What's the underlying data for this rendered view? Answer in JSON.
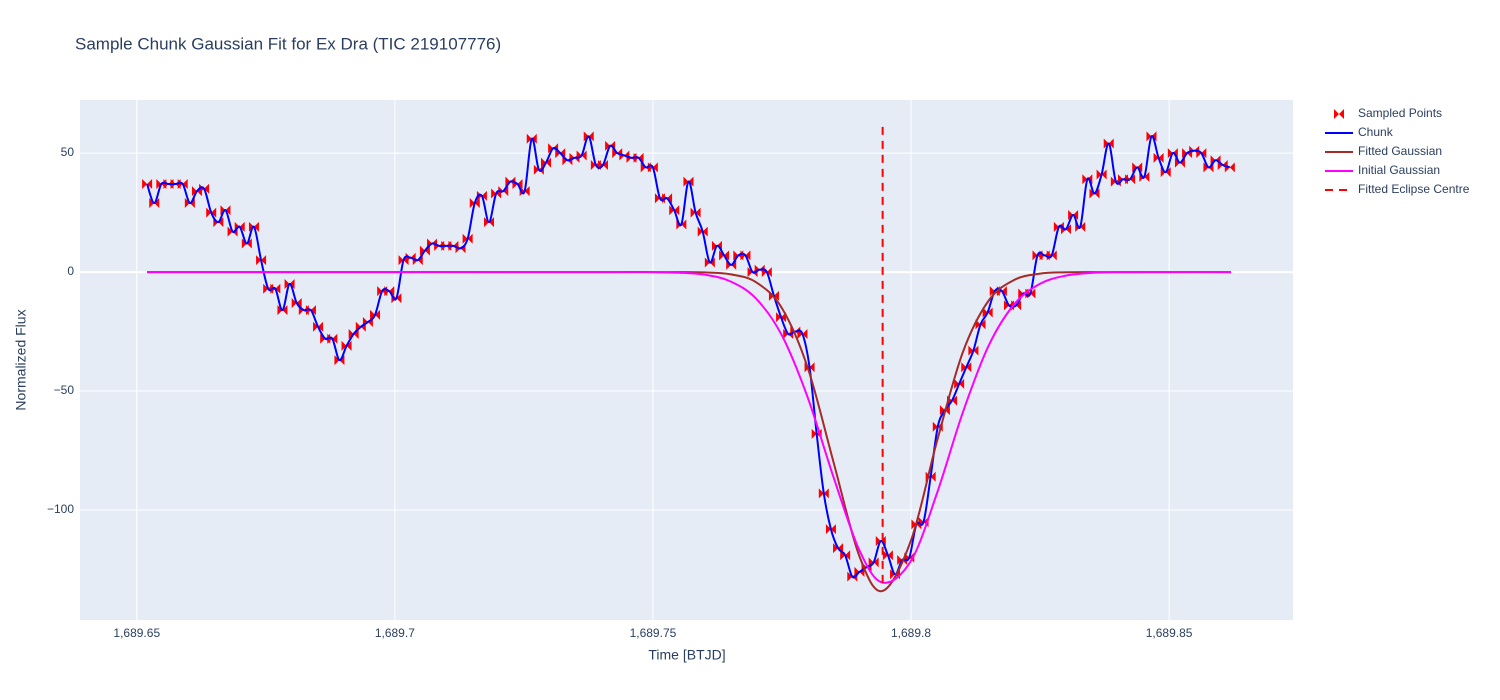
{
  "chart_data": {
    "type": "line",
    "title": "Sample Chunk Gaussian Fit for Ex Dra (TIC 219107776)",
    "x_label": "Time [BTJD]",
    "y_label": "Normalized Flux",
    "xlim": [
      1689.639,
      1689.874
    ],
    "ylim": [
      -146.2,
      72.3
    ],
    "xticks": [
      {
        "value": 1689.65,
        "label": "1,689.65"
      },
      {
        "value": 1689.7,
        "label": "1,689.7"
      },
      {
        "value": 1689.75,
        "label": "1,689.75"
      },
      {
        "value": 1689.8,
        "label": "1,689.8"
      },
      {
        "value": 1689.85,
        "label": "1,689.85"
      }
    ],
    "yticks": [
      50,
      0,
      {
        "value": -50,
        "label": "−50"
      },
      {
        "value": -100,
        "label": "−100"
      }
    ],
    "grid": true,
    "legend": "right",
    "x": [
      1689.652,
      1689.65338,
      1689.65476,
      1689.65614,
      1689.65752,
      1689.6589,
      1689.66028,
      1689.66166,
      1689.66304,
      1689.66442,
      1689.6658,
      1689.66718,
      1689.66856,
      1689.66994,
      1689.67132,
      1689.6727,
      1689.67408,
      1689.67546,
      1689.67684,
      1689.67822,
      1689.6796,
      1689.68098,
      1689.68236,
      1689.68374,
      1689.68512,
      1689.6865,
      1689.68788,
      1689.68926,
      1689.69064,
      1689.69202,
      1689.6934,
      1689.69478,
      1689.69616,
      1689.69754,
      1689.69892,
      1689.7003,
      1689.70168,
      1689.70306,
      1689.70444,
      1689.70582,
      1689.7072,
      1689.70858,
      1689.70996,
      1689.71134,
      1689.71272,
      1689.7141,
      1689.71548,
      1689.71686,
      1689.71824,
      1689.71962,
      1689.721,
      1689.72238,
      1689.72376,
      1689.72514,
      1689.72652,
      1689.7279,
      1689.72928,
      1689.73066,
      1689.73204,
      1689.73342,
      1689.7348,
      1689.73618,
      1689.73756,
      1689.73894,
      1689.74032,
      1689.7417,
      1689.74308,
      1689.74446,
      1689.74584,
      1689.74722,
      1689.7486,
      1689.74998,
      1689.75136,
      1689.75274,
      1689.75412,
      1689.7555,
      1689.75688,
      1689.75826,
      1689.75964,
      1689.76102,
      1689.7624,
      1689.76378,
      1689.76516,
      1689.76654,
      1689.76792,
      1689.7693,
      1689.77068,
      1689.77206,
      1689.77344,
      1689.77482,
      1689.7762,
      1689.77758,
      1689.77896,
      1689.78034,
      1689.78172,
      1689.7831,
      1689.78448,
      1689.78586,
      1689.78724,
      1689.78862,
      1689.79,
      1689.79138,
      1689.79276,
      1689.79414,
      1689.79552,
      1689.7969,
      1689.79828,
      1689.79966,
      1689.80104,
      1689.80242,
      1689.8038,
      1689.80518,
      1689.80656,
      1689.80794,
      1689.80932,
      1689.8107,
      1689.81208,
      1689.81346,
      1689.81484,
      1689.81622,
      1689.8176,
      1689.81898,
      1689.82036,
      1689.82174,
      1689.82312,
      1689.8245,
      1689.82588,
      1689.82726,
      1689.82864,
      1689.83002,
      1689.8314,
      1689.83278,
      1689.83416,
      1689.83554,
      1689.83692,
      1689.8383,
      1689.83968,
      1689.84106,
      1689.84244,
      1689.84382,
      1689.8452,
      1689.84658,
      1689.84796,
      1689.84934,
      1689.85072,
      1689.8521,
      1689.85348,
      1689.85486,
      1689.85624,
      1689.85762,
      1689.859,
      1689.86038,
      1689.86176
    ],
    "series": [
      {
        "name": "Sampled Points",
        "mode": "markers",
        "color": "#ff0000",
        "values": [
          37,
          29,
          37,
          37,
          37,
          37,
          29,
          34,
          35,
          25,
          21,
          26,
          17,
          19,
          12,
          19,
          5,
          -7,
          -7,
          -16,
          -5,
          -13,
          -16,
          -16,
          -23,
          -28,
          -28,
          -37,
          -31,
          -26,
          -23,
          -21,
          -18,
          -8,
          -8,
          -11,
          5,
          6,
          5,
          9,
          12,
          11,
          11,
          11,
          10,
          14,
          29,
          32,
          21,
          33,
          34,
          38,
          37,
          34,
          56,
          43,
          46,
          52,
          50,
          47,
          48,
          49,
          57,
          45,
          45,
          53,
          50,
          49,
          48,
          48,
          44,
          44,
          31,
          31,
          26,
          20,
          38,
          25,
          17,
          4,
          11,
          7,
          3,
          7,
          7,
          0,
          1,
          0,
          -10,
          -19,
          -26,
          -25,
          -26,
          -40,
          -68,
          -93,
          -108,
          -116,
          -119,
          -128,
          -126,
          -124,
          -122,
          -113,
          -119,
          -127,
          -121,
          -120,
          -106,
          -105,
          -86,
          -65,
          -58,
          -54,
          -47,
          -40,
          -33,
          -22,
          -17,
          -8,
          -8,
          -14,
          -14,
          -9,
          -9,
          7,
          7,
          7,
          19,
          18,
          24,
          19,
          39,
          33,
          41,
          54,
          38,
          39,
          39,
          44,
          40,
          57,
          48,
          42,
          50,
          46,
          50,
          51,
          50,
          44,
          47,
          45,
          44
        ]
      },
      {
        "name": "Chunk",
        "mode": "lines",
        "color": "#0000ff",
        "values": [
          37,
          29,
          37,
          37,
          37,
          37,
          29,
          34,
          35,
          25,
          21,
          26,
          17,
          19,
          12,
          19,
          5,
          -7,
          -7,
          -16,
          -5,
          -13,
          -16,
          -16,
          -23,
          -28,
          -28,
          -37,
          -31,
          -26,
          -23,
          -21,
          -18,
          -8,
          -8,
          -11,
          5,
          6,
          5,
          9,
          12,
          11,
          11,
          11,
          10,
          14,
          29,
          32,
          21,
          33,
          34,
          38,
          37,
          34,
          56,
          43,
          46,
          52,
          50,
          47,
          48,
          49,
          57,
          45,
          45,
          53,
          50,
          49,
          48,
          48,
          44,
          44,
          31,
          31,
          26,
          20,
          38,
          25,
          17,
          4,
          11,
          7,
          3,
          7,
          7,
          0,
          1,
          0,
          -10,
          -19,
          -26,
          -25,
          -26,
          -40,
          -68,
          -93,
          -108,
          -116,
          -119,
          -128,
          -126,
          -124,
          -122,
          -113,
          -119,
          -127,
          -121,
          -120,
          -106,
          -105,
          -86,
          -65,
          -58,
          -54,
          -47,
          -40,
          -33,
          -22,
          -17,
          -8,
          -8,
          -14,
          -14,
          -9,
          -9,
          7,
          7,
          7,
          19,
          18,
          24,
          19,
          39,
          33,
          41,
          54,
          38,
          39,
          39,
          44,
          40,
          57,
          48,
          42,
          50,
          46,
          50,
          51,
          50,
          44,
          47,
          45,
          44
        ]
      },
      {
        "name": "Fitted Gaussian",
        "mode": "lines",
        "color": "#a52a2a",
        "x": [
          1689.652,
          1689.7,
          1689.74,
          1689.75,
          1689.755,
          1689.76,
          1689.765,
          1689.77,
          1689.775,
          1689.78,
          1689.785,
          1689.79,
          1689.7945,
          1689.8,
          1689.805,
          1689.81,
          1689.815,
          1689.82,
          1689.825,
          1689.83,
          1689.835,
          1689.84,
          1689.85,
          1689.862
        ],
        "values": [
          0,
          0,
          0,
          0,
          -0.02,
          -0.15,
          -0.92,
          -4.3,
          -15.2,
          -40.3,
          -80,
          -119.4,
          -134,
          -112.7,
          -71.3,
          -33.9,
          -12.1,
          -3.3,
          -0.66,
          -0.1,
          -0.01,
          0,
          0,
          0
        ]
      },
      {
        "name": "Initial Gaussian",
        "mode": "lines",
        "color": "#ff00ff",
        "x": [
          1689.652,
          1689.7,
          1689.74,
          1689.75,
          1689.755,
          1689.76,
          1689.765,
          1689.77,
          1689.775,
          1689.78,
          1689.785,
          1689.79,
          1689.7945,
          1689.8,
          1689.805,
          1689.81,
          1689.815,
          1689.82,
          1689.825,
          1689.83,
          1689.835,
          1689.84,
          1689.85,
          1689.862
        ],
        "values": [
          0,
          0,
          0,
          -0.05,
          -0.27,
          -1.1,
          -3.9,
          -11.2,
          -26.7,
          -52.8,
          -86.3,
          -116.9,
          -130.5,
          -121.3,
          -93.1,
          -59.2,
          -31.1,
          -13.5,
          -4.9,
          -1.5,
          -0.36,
          -0.07,
          0,
          0
        ]
      },
      {
        "name": "Fitted Eclipse Centre",
        "mode": "lines",
        "dash": true,
        "color": "#ff0000",
        "x": [
          1689.7945,
          1689.7945
        ],
        "values": [
          61,
          -131
        ]
      }
    ]
  }
}
